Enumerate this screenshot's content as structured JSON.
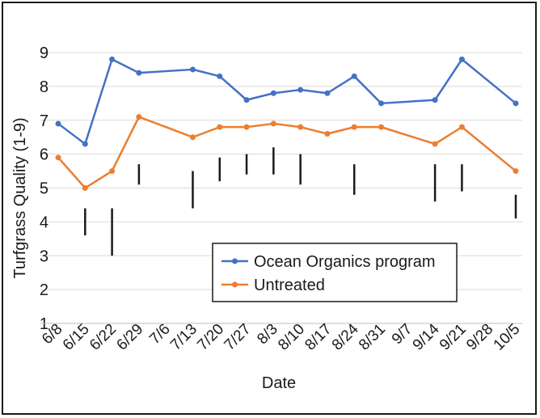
{
  "chart_data": {
    "type": "line",
    "xlabel": "Date",
    "ylabel": "Turfgrass Quality (1-9)",
    "ylim": [
      1,
      9
    ],
    "yticks": [
      1,
      2,
      3,
      4,
      5,
      6,
      7,
      8,
      9
    ],
    "grid": true,
    "legend_position": "center-right",
    "categories": [
      "6/8",
      "6/15",
      "6/22",
      "6/29",
      "7/6",
      "7/13",
      "7/20",
      "7/27",
      "8/3",
      "8/10",
      "8/17",
      "8/24",
      "8/31",
      "9/7",
      "9/14",
      "9/21",
      "9/28",
      "10/5"
    ],
    "series": [
      {
        "name": "Ocean Organics program",
        "color": "#4472c4",
        "points": [
          {
            "x": "6/8",
            "y": 6.9
          },
          {
            "x": "6/15",
            "y": 6.3
          },
          {
            "x": "6/22",
            "y": 8.8
          },
          {
            "x": "6/29",
            "y": 8.4
          },
          {
            "x": "7/13",
            "y": 8.5
          },
          {
            "x": "7/20",
            "y": 8.3
          },
          {
            "x": "7/27",
            "y": 7.6
          },
          {
            "x": "8/3",
            "y": 7.8
          },
          {
            "x": "8/10",
            "y": 7.9
          },
          {
            "x": "8/17",
            "y": 7.8
          },
          {
            "x": "8/24",
            "y": 8.3
          },
          {
            "x": "8/31",
            "y": 7.5
          },
          {
            "x": "9/14",
            "y": 7.6
          },
          {
            "x": "9/21",
            "y": 8.8
          },
          {
            "x": "10/5",
            "y": 7.5
          }
        ]
      },
      {
        "name": "Untreated",
        "color": "#ed7d31",
        "points": [
          {
            "x": "6/8",
            "y": 5.9
          },
          {
            "x": "6/15",
            "y": 5.0
          },
          {
            "x": "6/22",
            "y": 5.5
          },
          {
            "x": "6/29",
            "y": 7.1
          },
          {
            "x": "7/13",
            "y": 6.5
          },
          {
            "x": "7/20",
            "y": 6.8
          },
          {
            "x": "7/27",
            "y": 6.8
          },
          {
            "x": "8/3",
            "y": 6.9
          },
          {
            "x": "8/10",
            "y": 6.8
          },
          {
            "x": "8/17",
            "y": 6.6
          },
          {
            "x": "8/24",
            "y": 6.8
          },
          {
            "x": "8/31",
            "y": 6.8
          },
          {
            "x": "9/14",
            "y": 6.3
          },
          {
            "x": "9/21",
            "y": 6.8
          },
          {
            "x": "10/5",
            "y": 5.5
          }
        ]
      }
    ],
    "lsd_bars": {
      "color": "#1a1a1a",
      "ranges": [
        {
          "x": "6/15",
          "low": 3.6,
          "high": 4.4
        },
        {
          "x": "6/22",
          "low": 3.0,
          "high": 4.4
        },
        {
          "x": "6/29",
          "low": 5.1,
          "high": 5.7
        },
        {
          "x": "7/13",
          "low": 4.4,
          "high": 5.5
        },
        {
          "x": "7/20",
          "low": 5.2,
          "high": 5.9
        },
        {
          "x": "7/27",
          "low": 5.4,
          "high": 6.0
        },
        {
          "x": "8/3",
          "low": 5.4,
          "high": 6.2
        },
        {
          "x": "8/10",
          "low": 5.1,
          "high": 6.0
        },
        {
          "x": "8/24",
          "low": 4.8,
          "high": 5.7
        },
        {
          "x": "9/14",
          "low": 4.6,
          "high": 5.7
        },
        {
          "x": "9/21",
          "low": 4.9,
          "high": 5.7
        },
        {
          "x": "10/5",
          "low": 4.1,
          "high": 4.8
        }
      ]
    }
  }
}
